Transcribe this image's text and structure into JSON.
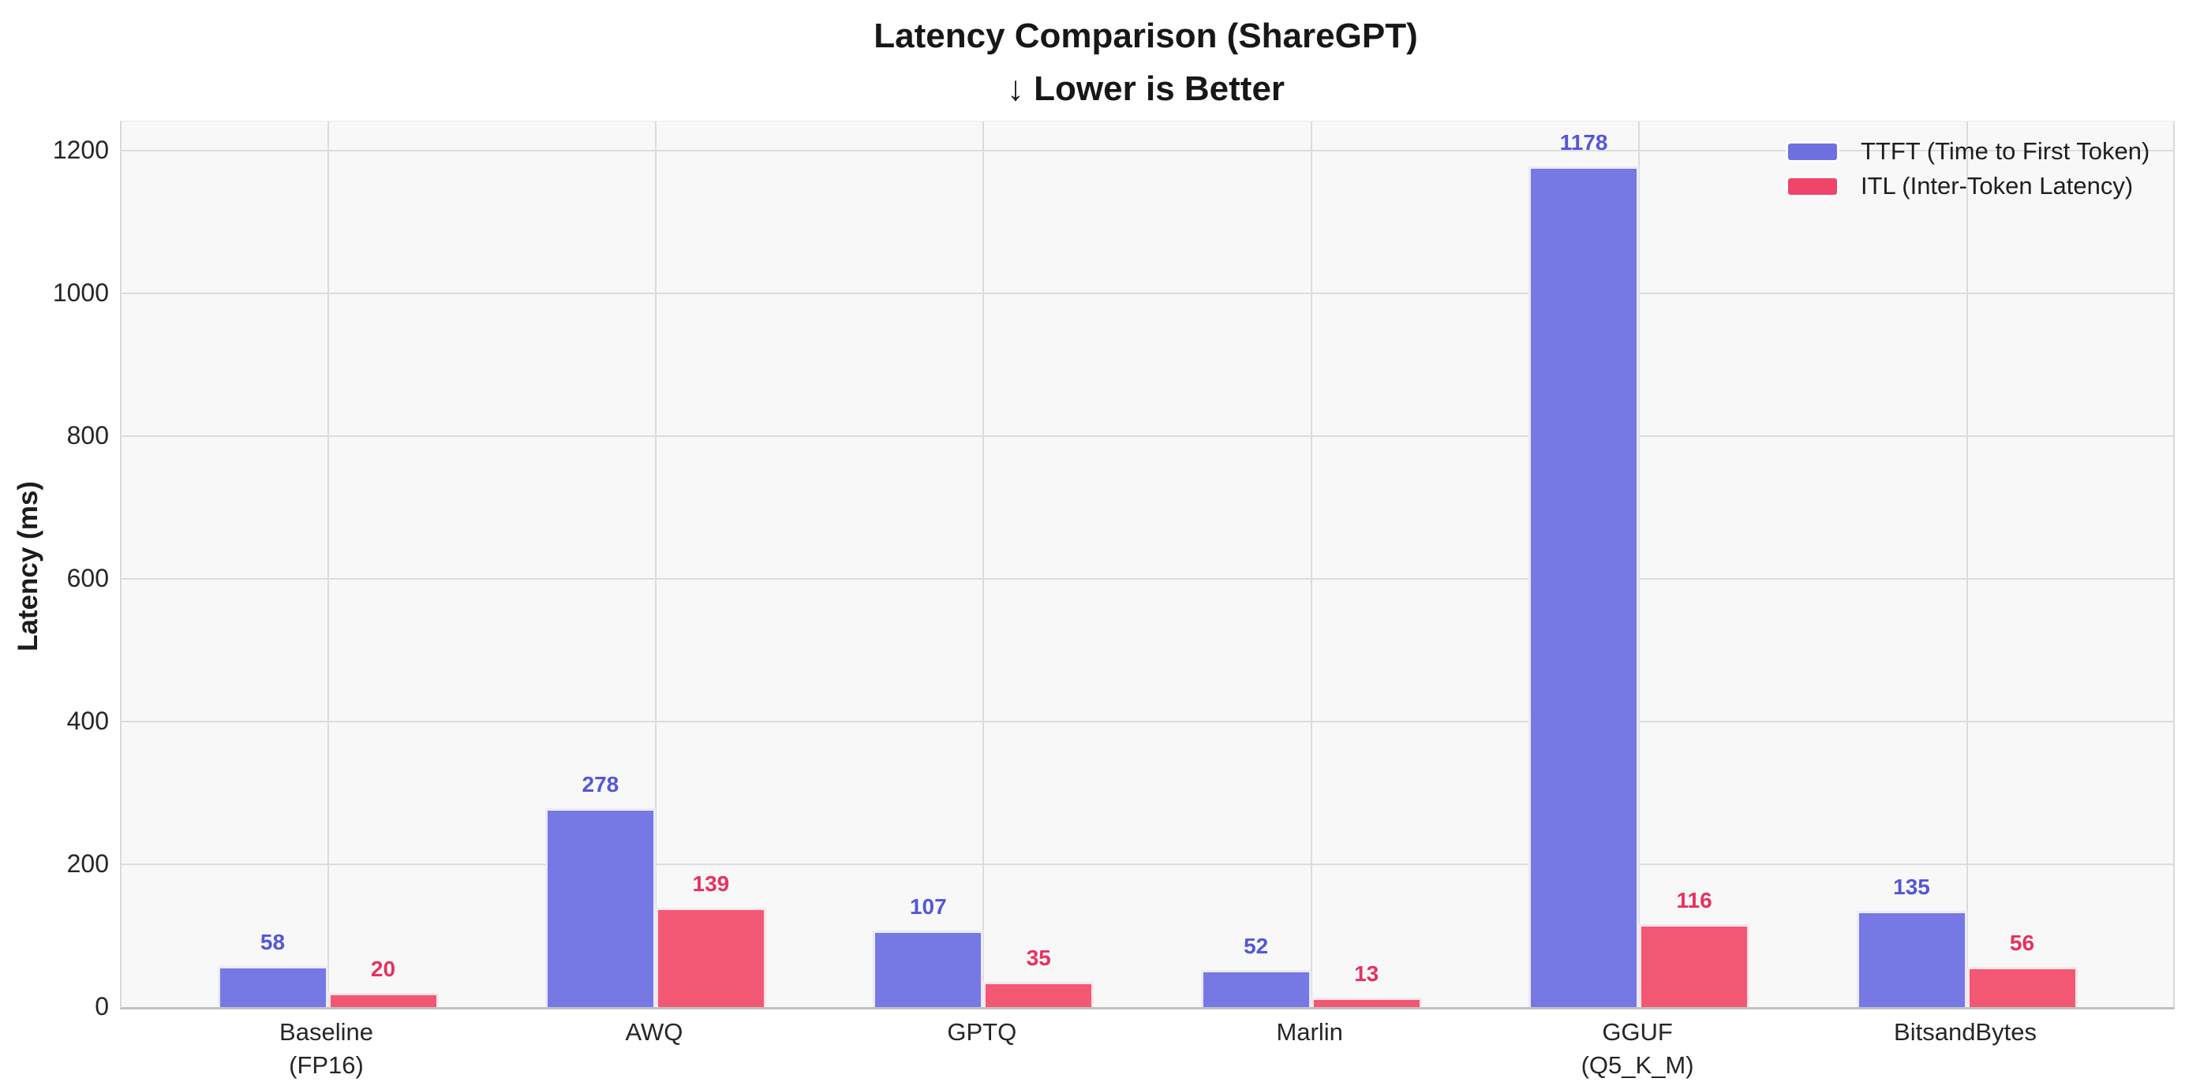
{
  "title": {
    "line1": "Latency Comparison (ShareGPT)",
    "line2": "↓ Lower is Better"
  },
  "chart_data": {
    "type": "bar",
    "categories": [
      "Baseline\n(FP16)",
      "AWQ",
      "GPTQ",
      "Marlin",
      "GGUF\n(Q5_K_M)",
      "BitsandBytes"
    ],
    "series": [
      {
        "name": "TTFT (Time to First Token)",
        "values": [
          58,
          278,
          107,
          52,
          1178,
          135
        ],
        "bar_color": "#7678e4",
        "label_color": "#5457d9",
        "swatch_color": "#6e70e0"
      },
      {
        "name": "ITL (Inter-Token Latency)",
        "values": [
          20,
          139,
          35,
          13,
          116,
          56
        ],
        "bar_color": "#f25873",
        "label_color": "#e7315e",
        "swatch_color": "#ee4569"
      }
    ],
    "ylabel": "Latency (ms)",
    "yticks": [
      0,
      200,
      400,
      600,
      800,
      1000,
      1200
    ],
    "ylim": [
      0,
      1241
    ],
    "grid": true,
    "legend_position": "upper right",
    "plot_background": "#f8f8f8",
    "gridline_color": "#dcdcdc"
  }
}
